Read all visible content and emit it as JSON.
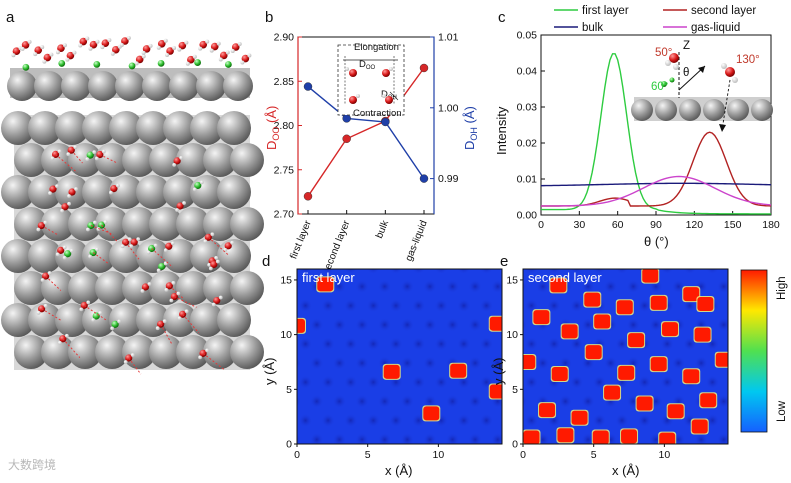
{
  "panel_labels": {
    "a": "a",
    "b": "b",
    "c": "c",
    "d": "d",
    "e": "e"
  },
  "watermark": "大数跨境",
  "chart_data": [
    {
      "id": "b",
      "type": "line",
      "categories": [
        "first layer",
        "second layer",
        "bulk",
        "gas-liquid"
      ],
      "series": [
        {
          "name": "D_OO",
          "axis": "left",
          "color": "#d62728",
          "values": [
            2.72,
            2.785,
            2.805,
            2.865
          ]
        },
        {
          "name": "D_OH",
          "axis": "right",
          "color": "#1f3fa8",
          "values": [
            1.003,
            0.9985,
            0.998,
            0.99
          ]
        }
      ],
      "ylabel_left": {
        "main": "D",
        "sub": "OO",
        "unit": " (Å)"
      },
      "ylabel_right": {
        "main": "D",
        "sub": "OH",
        "unit": " (Å)"
      },
      "ylim_left": [
        2.7,
        2.9
      ],
      "yticks_left": [
        "2.70",
        "2.75",
        "2.80",
        "2.85",
        "2.90"
      ],
      "ylim_right": [
        0.985,
        1.01
      ],
      "yticks_right": [
        "0.99",
        "1.00",
        "1.01"
      ],
      "inset": {
        "elongation": "Elongation",
        "contraction": "Contraction",
        "doo": {
          "main": "D",
          "sub": "OO"
        },
        "doh": {
          "main": "D",
          "sub": "OH"
        }
      }
    },
    {
      "id": "c",
      "type": "line",
      "xlabel": "θ (°)",
      "ylabel": "Intensity",
      "xlim": [
        0,
        180
      ],
      "xticks": [
        "0",
        "30",
        "60",
        "90",
        "120",
        "150",
        "180"
      ],
      "ylim": [
        0,
        0.05
      ],
      "yticks": [
        "0.00",
        "0.01",
        "0.02",
        "0.03",
        "0.04",
        "0.05"
      ],
      "series": [
        {
          "name": "first layer",
          "color": "#2ecc40",
          "mu": 57,
          "sigma": 10,
          "amp": 0.0435,
          "base": 0.0015
        },
        {
          "name": "second layer",
          "color": "#b22222",
          "mu": 132,
          "sigma": 13,
          "amp": 0.0205,
          "base": 0.0025
        },
        {
          "name": "bulk",
          "color": "#1a1a7a",
          "mu": 110,
          "sigma": 60,
          "amp": 0.0008,
          "base": 0.008
        },
        {
          "name": "gas-liquid",
          "color": "#cc44cc",
          "mu": 108,
          "sigma": 28,
          "amp": 0.0082,
          "base": 0.0025
        }
      ],
      "inset": {
        "z": "Z",
        "theta": "θ",
        "angle_50": "50°",
        "angle_60": "60°",
        "angle_130": "130°"
      }
    },
    {
      "id": "d",
      "type": "heatmap",
      "title": "first layer",
      "xlabel": "x (Å)",
      "ylabel": "y (Å)",
      "xlim": [
        0,
        14.5
      ],
      "ylim": [
        0,
        16
      ],
      "xticks": [
        "0",
        "5",
        "10"
      ],
      "yticks": [
        "0",
        "5",
        "10",
        "15"
      ],
      "hotspots": [
        [
          2.0,
          14.6
        ],
        [
          6.7,
          6.6
        ],
        [
          11.4,
          6.7
        ],
        [
          9.5,
          2.8
        ],
        [
          14.2,
          11.0
        ],
        [
          14.2,
          4.8
        ],
        [
          0.0,
          10.8
        ]
      ]
    },
    {
      "id": "e",
      "type": "heatmap",
      "title": "second layer",
      "xlabel": "x (Å)",
      "ylabel": "y (Å)",
      "xlim": [
        0,
        14.5
      ],
      "ylim": [
        0,
        16
      ],
      "xticks": [
        "0",
        "5",
        "10"
      ],
      "yticks": [
        "0",
        "5",
        "10",
        "15"
      ],
      "hotspots": [
        [
          2.5,
          14.5
        ],
        [
          4.9,
          13.2
        ],
        [
          7.2,
          12.5
        ],
        [
          9.6,
          12.9
        ],
        [
          11.9,
          13.7
        ],
        [
          12.9,
          12.8
        ],
        [
          9.0,
          15.4
        ],
        [
          1.3,
          11.6
        ],
        [
          3.3,
          10.3
        ],
        [
          5.6,
          11.2
        ],
        [
          8.0,
          9.5
        ],
        [
          10.4,
          10.5
        ],
        [
          12.7,
          10.0
        ],
        [
          0.3,
          7.5
        ],
        [
          2.6,
          6.4
        ],
        [
          5.0,
          8.4
        ],
        [
          7.3,
          6.5
        ],
        [
          9.6,
          7.3
        ],
        [
          11.9,
          6.2
        ],
        [
          14.2,
          7.7
        ],
        [
          1.7,
          3.1
        ],
        [
          4.0,
          2.4
        ],
        [
          6.3,
          4.7
        ],
        [
          8.6,
          3.7
        ],
        [
          10.8,
          3.0
        ],
        [
          13.1,
          4.0
        ],
        [
          3.0,
          0.8
        ],
        [
          5.5,
          0.6
        ],
        [
          7.5,
          0.7
        ],
        [
          10.2,
          0.4
        ],
        [
          12.5,
          1.6
        ],
        [
          0.6,
          0.6
        ]
      ]
    },
    {
      "id": "colorbar",
      "type": "colorbar",
      "high": "High",
      "low": "Low"
    }
  ]
}
